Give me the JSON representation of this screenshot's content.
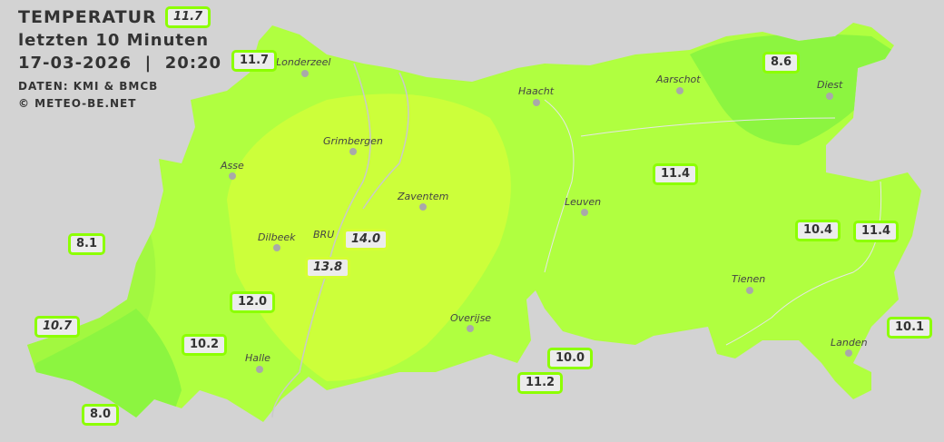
{
  "header": {
    "title": "TEMPERATUR",
    "subtitle": "letzten 10 Minuten",
    "datetime": "17-03-2026  |  20:20",
    "source": "DATEN: KMI & BMCB",
    "copyright": "© METEO-BE.NET"
  },
  "colors": {
    "background": "#d3d3d3",
    "base": "#b0ff40",
    "warm": "#ccff3a",
    "cool": "#8cf540",
    "badge_border": "#8cff00"
  },
  "cities": [
    {
      "name": "Londerzeel"
    },
    {
      "name": "Haacht"
    },
    {
      "name": "Aarschot"
    },
    {
      "name": "Diest"
    },
    {
      "name": "Grimbergen"
    },
    {
      "name": "Asse"
    },
    {
      "name": "Zaventem"
    },
    {
      "name": "Leuven"
    },
    {
      "name": "Dilbeek"
    },
    {
      "name": "BRU"
    },
    {
      "name": "Tienen"
    },
    {
      "name": "Overijse"
    },
    {
      "name": "Halle"
    },
    {
      "name": "Landen"
    }
  ],
  "stations": [
    {
      "value": "11.7"
    },
    {
      "value": "11.7"
    },
    {
      "value": "8.6"
    },
    {
      "value": "11.4"
    },
    {
      "value": "8.1"
    },
    {
      "value": "14.0"
    },
    {
      "value": "13.8"
    },
    {
      "value": "10.4"
    },
    {
      "value": "11.4"
    },
    {
      "value": "12.0"
    },
    {
      "value": "10.7"
    },
    {
      "value": "10.2"
    },
    {
      "value": "10.1"
    },
    {
      "value": "10.0"
    },
    {
      "value": "11.2"
    },
    {
      "value": "8.0"
    }
  ]
}
